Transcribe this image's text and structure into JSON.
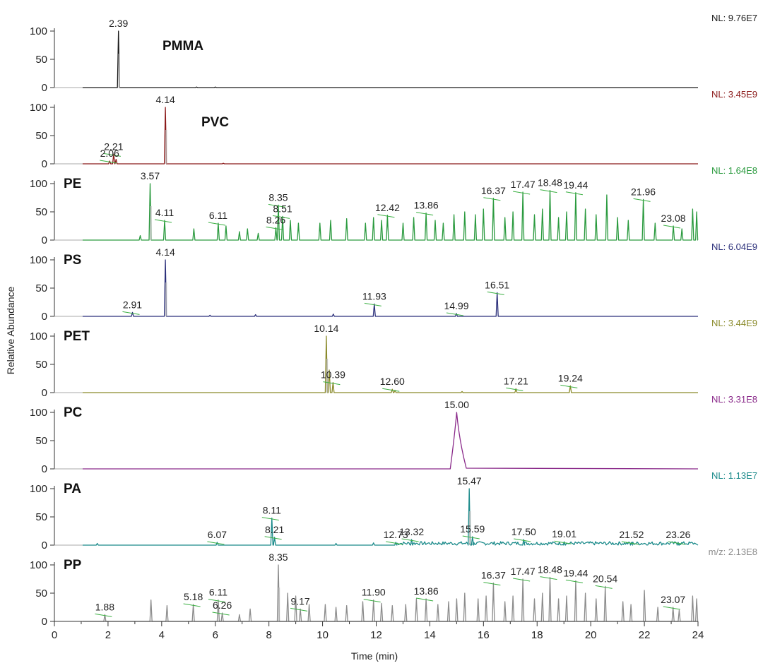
{
  "chart_data": {
    "type": "line",
    "xlabel": "Time (min)",
    "ylabel": "Relative Abundance",
    "xlim": [
      0,
      24
    ],
    "ylim": [
      0,
      100
    ],
    "x_ticks": [
      "0",
      "2",
      "4",
      "6",
      "8",
      "10",
      "12",
      "14",
      "16",
      "18",
      "20",
      "22",
      "24"
    ],
    "y_ticks": [
      "0",
      "50",
      "100"
    ],
    "panels": [
      {
        "name": "PMMA",
        "color": "#1a1a1a",
        "nl_prefix": "NL: ",
        "nl": "9.76E7",
        "peaks": [
          {
            "t": 2.39,
            "h": 100,
            "label": "2.39"
          }
        ],
        "minor": [
          {
            "t": 5.3,
            "h": 1
          },
          {
            "t": 6.0,
            "h": 1
          }
        ]
      },
      {
        "name": "PVC",
        "color": "#8b1a1a",
        "nl_prefix": "NL: ",
        "nl": "3.45E9",
        "peaks": [
          {
            "t": 4.14,
            "h": 100,
            "label": "4.14"
          },
          {
            "t": 2.21,
            "h": 17,
            "label": "2.21"
          },
          {
            "t": 2.06,
            "h": 5,
            "label": "2.06"
          }
        ],
        "minor": [
          {
            "t": 2.3,
            "h": 8
          },
          {
            "t": 6.3,
            "h": 1
          }
        ]
      },
      {
        "name": "PE",
        "color": "#2a9a3e",
        "nl_prefix": "NL: ",
        "nl": "1.64E8",
        "peaks": [
          {
            "t": 3.57,
            "h": 100,
            "label": "3.57"
          },
          {
            "t": 4.11,
            "h": 35,
            "label": "4.11"
          },
          {
            "t": 6.11,
            "h": 30,
            "label": "6.11"
          },
          {
            "t": 8.26,
            "h": 22,
            "label": "8.26"
          },
          {
            "t": 8.35,
            "h": 62,
            "label": "8.35"
          },
          {
            "t": 8.51,
            "h": 42,
            "label": "8.51"
          },
          {
            "t": 12.42,
            "h": 44,
            "label": "12.42"
          },
          {
            "t": 13.86,
            "h": 48,
            "label": "13.86"
          },
          {
            "t": 16.37,
            "h": 74,
            "label": "16.37"
          },
          {
            "t": 17.47,
            "h": 85,
            "label": "17.47"
          },
          {
            "t": 18.48,
            "h": 88,
            "label": "18.48"
          },
          {
            "t": 19.44,
            "h": 84,
            "label": "19.44"
          },
          {
            "t": 21.96,
            "h": 72,
            "label": "21.96"
          },
          {
            "t": 23.08,
            "h": 25,
            "label": "23.08"
          }
        ],
        "minor": [
          {
            "t": 3.2,
            "h": 8
          },
          {
            "t": 5.2,
            "h": 20
          },
          {
            "t": 6.4,
            "h": 25
          },
          {
            "t": 6.9,
            "h": 15
          },
          {
            "t": 7.2,
            "h": 20
          },
          {
            "t": 7.6,
            "h": 12
          },
          {
            "t": 8.8,
            "h": 35
          },
          {
            "t": 9.1,
            "h": 30
          },
          {
            "t": 9.9,
            "h": 30
          },
          {
            "t": 10.3,
            "h": 35
          },
          {
            "t": 10.9,
            "h": 38
          },
          {
            "t": 11.6,
            "h": 30
          },
          {
            "t": 11.9,
            "h": 40
          },
          {
            "t": 12.2,
            "h": 35
          },
          {
            "t": 13.0,
            "h": 30
          },
          {
            "t": 13.4,
            "h": 40
          },
          {
            "t": 14.2,
            "h": 35
          },
          {
            "t": 14.5,
            "h": 30
          },
          {
            "t": 14.9,
            "h": 45
          },
          {
            "t": 15.3,
            "h": 50
          },
          {
            "t": 15.7,
            "h": 45
          },
          {
            "t": 16.0,
            "h": 55
          },
          {
            "t": 16.8,
            "h": 40
          },
          {
            "t": 17.1,
            "h": 50
          },
          {
            "t": 17.9,
            "h": 45
          },
          {
            "t": 18.2,
            "h": 55
          },
          {
            "t": 18.8,
            "h": 40
          },
          {
            "t": 19.1,
            "h": 50
          },
          {
            "t": 19.8,
            "h": 55
          },
          {
            "t": 20.2,
            "h": 45
          },
          {
            "t": 20.6,
            "h": 80
          },
          {
            "t": 21.0,
            "h": 40
          },
          {
            "t": 21.4,
            "h": 35
          },
          {
            "t": 22.4,
            "h": 30
          },
          {
            "t": 23.4,
            "h": 20
          },
          {
            "t": 23.8,
            "h": 55
          },
          {
            "t": 23.95,
            "h": 50
          }
        ]
      },
      {
        "name": "PS",
        "color": "#2b2f7a",
        "nl_prefix": "NL: ",
        "nl": "6.04E9",
        "peaks": [
          {
            "t": 4.14,
            "h": 100,
            "label": "4.14"
          },
          {
            "t": 2.91,
            "h": 7,
            "label": "2.91"
          },
          {
            "t": 11.93,
            "h": 22,
            "label": "11.93"
          },
          {
            "t": 14.99,
            "h": 5,
            "label": "14.99"
          },
          {
            "t": 16.51,
            "h": 42,
            "label": "16.51"
          }
        ],
        "minor": [
          {
            "t": 5.8,
            "h": 2
          },
          {
            "t": 7.5,
            "h": 3
          },
          {
            "t": 10.4,
            "h": 4
          }
        ]
      },
      {
        "name": "PET",
        "color": "#8a8a2a",
        "nl_prefix": "NL: ",
        "nl": "3.44E9",
        "peaks": [
          {
            "t": 10.14,
            "h": 100,
            "label": "10.14"
          },
          {
            "t": 10.39,
            "h": 18,
            "label": "10.39"
          },
          {
            "t": 12.6,
            "h": 6,
            "label": "12.60"
          },
          {
            "t": 17.21,
            "h": 7,
            "label": "17.21"
          },
          {
            "t": 19.24,
            "h": 12,
            "label": "19.24"
          }
        ],
        "minor": [
          {
            "t": 10.25,
            "h": 40
          },
          {
            "t": 12.7,
            "h": 4
          },
          {
            "t": 15.2,
            "h": 2
          }
        ]
      },
      {
        "name": "PC",
        "color": "#8a2a8a",
        "nl_prefix": "NL: ",
        "nl": "3.31E8",
        "peaks": [
          {
            "t": 15.0,
            "h": 100,
            "label": "15.00",
            "wide": true
          }
        ],
        "minor": []
      },
      {
        "name": "PA",
        "color": "#1a8a8a",
        "nl_prefix": "NL: ",
        "nl": "1.13E7",
        "peaks": [
          {
            "t": 15.47,
            "h": 100,
            "label": "15.47"
          },
          {
            "t": 6.07,
            "h": 5,
            "label": "6.07"
          },
          {
            "t": 8.11,
            "h": 48,
            "label": "8.11"
          },
          {
            "t": 8.21,
            "h": 14,
            "label": "8.21"
          },
          {
            "t": 12.73,
            "h": 5,
            "label": "12.73"
          },
          {
            "t": 13.32,
            "h": 10,
            "label": "13.32"
          },
          {
            "t": 15.59,
            "h": 15,
            "label": "15.59"
          },
          {
            "t": 17.5,
            "h": 10,
            "label": "17.50"
          },
          {
            "t": 19.01,
            "h": 6,
            "label": "19.01"
          },
          {
            "t": 21.52,
            "h": 5,
            "label": "21.52"
          },
          {
            "t": 23.26,
            "h": 5,
            "label": "23.26"
          }
        ],
        "minor": [
          {
            "t": 1.6,
            "h": 3
          },
          {
            "t": 10.5,
            "h": 3
          },
          {
            "t": 11.9,
            "h": 4
          }
        ]
      },
      {
        "name": "PP",
        "color": "#8c8c8c",
        "nl_prefix": "m/z: ",
        "nl": "2.13E8",
        "peaks": [
          {
            "t": 8.35,
            "h": 100,
            "label": "8.35"
          },
          {
            "t": 1.88,
            "h": 12,
            "label": "1.88"
          },
          {
            "t": 5.18,
            "h": 30,
            "label": "5.18"
          },
          {
            "t": 6.11,
            "h": 38,
            "label": "6.11"
          },
          {
            "t": 6.26,
            "h": 15,
            "label": "6.26"
          },
          {
            "t": 9.17,
            "h": 22,
            "label": "9.17"
          },
          {
            "t": 11.9,
            "h": 38,
            "label": "11.90"
          },
          {
            "t": 13.86,
            "h": 40,
            "label": "13.86"
          },
          {
            "t": 16.37,
            "h": 68,
            "label": "16.37"
          },
          {
            "t": 17.47,
            "h": 75,
            "label": "17.47"
          },
          {
            "t": 18.48,
            "h": 78,
            "label": "18.48"
          },
          {
            "t": 19.44,
            "h": 72,
            "label": "19.44"
          },
          {
            "t": 20.54,
            "h": 62,
            "label": "20.54"
          },
          {
            "t": 23.07,
            "h": 25,
            "label": "23.07"
          }
        ],
        "minor": [
          {
            "t": 3.6,
            "h": 38
          },
          {
            "t": 4.2,
            "h": 28
          },
          {
            "t": 6.9,
            "h": 12
          },
          {
            "t": 7.3,
            "h": 22
          },
          {
            "t": 8.7,
            "h": 50
          },
          {
            "t": 9.0,
            "h": 45
          },
          {
            "t": 9.5,
            "h": 30
          },
          {
            "t": 10.1,
            "h": 30
          },
          {
            "t": 10.5,
            "h": 25
          },
          {
            "t": 10.9,
            "h": 28
          },
          {
            "t": 11.5,
            "h": 35
          },
          {
            "t": 12.2,
            "h": 32
          },
          {
            "t": 12.6,
            "h": 28
          },
          {
            "t": 13.1,
            "h": 30
          },
          {
            "t": 13.5,
            "h": 40
          },
          {
            "t": 14.3,
            "h": 30
          },
          {
            "t": 14.7,
            "h": 35
          },
          {
            "t": 15.0,
            "h": 40
          },
          {
            "t": 15.3,
            "h": 50
          },
          {
            "t": 15.8,
            "h": 40
          },
          {
            "t": 16.1,
            "h": 45
          },
          {
            "t": 16.8,
            "h": 35
          },
          {
            "t": 17.1,
            "h": 45
          },
          {
            "t": 17.9,
            "h": 40
          },
          {
            "t": 18.2,
            "h": 50
          },
          {
            "t": 18.8,
            "h": 40
          },
          {
            "t": 19.1,
            "h": 45
          },
          {
            "t": 19.8,
            "h": 50
          },
          {
            "t": 20.2,
            "h": 40
          },
          {
            "t": 21.2,
            "h": 35
          },
          {
            "t": 21.5,
            "h": 30
          },
          {
            "t": 22.0,
            "h": 55
          },
          {
            "t": 22.5,
            "h": 25
          },
          {
            "t": 23.3,
            "h": 20
          },
          {
            "t": 23.8,
            "h": 45
          },
          {
            "t": 23.95,
            "h": 40
          }
        ]
      }
    ]
  }
}
